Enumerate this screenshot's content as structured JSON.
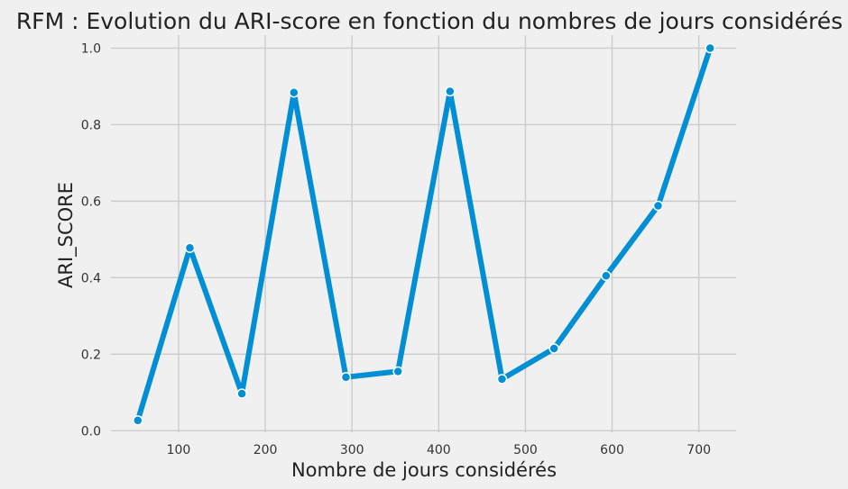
{
  "chart_data": {
    "type": "line",
    "title": "RFM : Evolution du ARI-score en fonction du nombres de jours considérés",
    "xlabel": "Nombre de jours considérés",
    "ylabel": "ARI_SCORE",
    "xlim": [
      22,
      743
    ],
    "ylim": [
      -0.004,
      1.034
    ],
    "xticks": [
      100,
      200,
      300,
      400,
      500,
      600,
      700
    ],
    "yticks": [
      0.0,
      0.2,
      0.4,
      0.6,
      0.8,
      1.0
    ],
    "ytick_labels": [
      "0.0",
      "0.2",
      "0.4",
      "0.6",
      "0.8",
      "1.0"
    ],
    "grid": true,
    "series": [
      {
        "color": "#008fd5",
        "marker": "circle",
        "x": [
          53,
          113,
          173,
          233,
          293,
          353,
          413,
          473,
          533,
          593,
          653,
          713
        ],
        "y": [
          0.027,
          0.478,
          0.097,
          0.884,
          0.14,
          0.155,
          0.887,
          0.135,
          0.215,
          0.405,
          0.588,
          1.0
        ]
      }
    ]
  }
}
